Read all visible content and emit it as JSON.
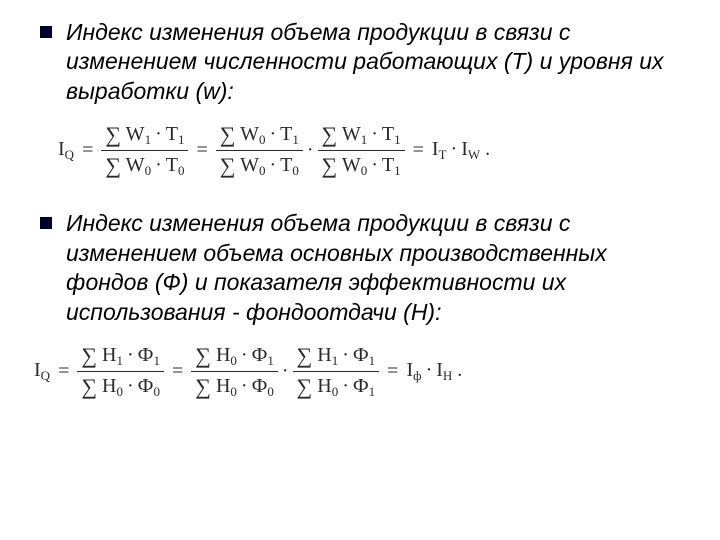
{
  "items": [
    {
      "text": "Индекс изменения объема продукции в связи с изменением численности работающих (Т) и уровня их выработки (w):"
    },
    {
      "text": "Индекс изменения объема продукции в связи с изменением объема основных производственных фондов (Ф) и показателя эффективности их использования - фондоотдачи (Н):"
    }
  ],
  "formula1": {
    "lhs_base": "I",
    "lhs_sub": "Q",
    "f1_num_a": "W",
    "f1_num_a_sub": "1",
    "f1_num_b": "T",
    "f1_num_b_sub": "1",
    "f1_den_a": "W",
    "f1_den_a_sub": "0",
    "f1_den_b": "T",
    "f1_den_b_sub": "0",
    "f2_num_a": "W",
    "f2_num_a_sub": "0",
    "f2_num_b": "T",
    "f2_num_b_sub": "1",
    "f2_den_a": "W",
    "f2_den_a_sub": "0",
    "f2_den_b": "T",
    "f2_den_b_sub": "0",
    "f3_num_a": "W",
    "f3_num_a_sub": "1",
    "f3_num_b": "T",
    "f3_num_b_sub": "1",
    "f3_den_a": "W",
    "f3_den_a_sub": "0",
    "f3_den_b": "T",
    "f3_den_b_sub": "1",
    "res_a": "I",
    "res_a_sub": "T",
    "res_b": "I",
    "res_b_sub": "W",
    "period": "."
  },
  "formula2": {
    "lhs_base": "I",
    "lhs_sub": "Q",
    "f1_num_a": "H",
    "f1_num_a_sub": "1",
    "f1_num_b": "Ф",
    "f1_num_b_sub": "1",
    "f1_den_a": "H",
    "f1_den_a_sub": "0",
    "f1_den_b": "Ф",
    "f1_den_b_sub": "0",
    "f2_num_a": "H",
    "f2_num_a_sub": "0",
    "f2_num_b": "Ф",
    "f2_num_b_sub": "1",
    "f2_den_a": "H",
    "f2_den_a_sub": "0",
    "f2_den_b": "Ф",
    "f2_den_b_sub": "0",
    "f3_num_a": "H",
    "f3_num_a_sub": "1",
    "f3_num_b": "Ф",
    "f3_num_b_sub": "1",
    "f3_den_a": "H",
    "f3_den_a_sub": "0",
    "f3_den_b": "Ф",
    "f3_den_b_sub": "1",
    "res_a": "I",
    "res_a_sub": "ф",
    "res_b": "I",
    "res_b_sub": "H",
    "period": "."
  },
  "glyphs": {
    "sigma": "∑",
    "cdot": "·",
    "equals": "="
  }
}
